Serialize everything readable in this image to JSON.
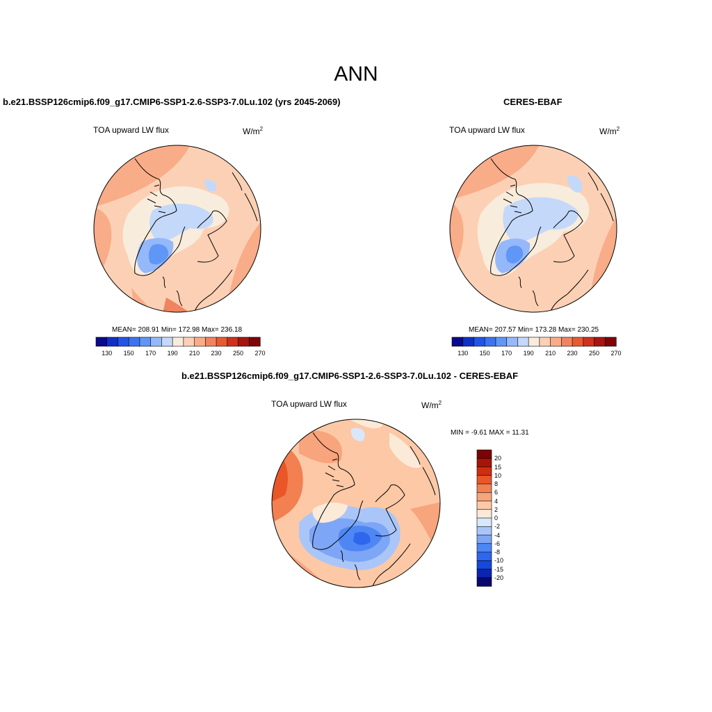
{
  "main_title": "ANN",
  "top_left": {
    "title": "b.e21.BSSP126cmip6.f09_g17.CMIP6-SSP1-2.6-SSP3-7.0Lu.102 (yrs 2045-2069)",
    "variable": "TOA upward LW flux",
    "units": "W/m",
    "units_exp": "2",
    "stats": "MEAN= 208.91  Min= 172.98  Max= 236.18"
  },
  "top_right": {
    "title": "CERES-EBAF",
    "variable": "TOA upward LW flux",
    "units": "W/m",
    "units_exp": "2",
    "stats": "MEAN= 207.57  Min= 173.28  Max= 230.25"
  },
  "bottom": {
    "title": "b.e21.BSSP126cmip6.f09_g17.CMIP6-SSP1-2.6-SSP3-7.0Lu.102 - CERES-EBAF",
    "variable": "TOA upward LW flux",
    "units": "W/m",
    "units_exp": "2",
    "minmax": "MIN =  -9.61 MAX =  11.31"
  },
  "abs_colorbar": {
    "colors": [
      "#0a0a8c",
      "#1030c8",
      "#2454e6",
      "#3c74f0",
      "#6096f6",
      "#94b8fa",
      "#c4d8fa",
      "#f8ecdc",
      "#fcd0b4",
      "#f8ac88",
      "#f08460",
      "#e85a34",
      "#d0301c",
      "#a81410",
      "#7e0606"
    ],
    "tick_labels": [
      "130",
      "150",
      "170",
      "190",
      "210",
      "230",
      "250",
      "270"
    ]
  },
  "diff_colorbar": {
    "colors": [
      "#08086e",
      "#0a26b0",
      "#1648dc",
      "#2e66ee",
      "#4e86f4",
      "#7ea6f6",
      "#aac6f8",
      "#d8e8fa",
      "#fcead8",
      "#fcc8a6",
      "#f8a47c",
      "#f28050",
      "#ea5628",
      "#d02e10",
      "#a81408",
      "#7a0404"
    ],
    "tick_labels": [
      "20",
      "15",
      "10",
      "8",
      "6",
      "4",
      "2",
      "0",
      "-2",
      "-4",
      "-6",
      "-8",
      "-10",
      "-15",
      "-20"
    ]
  }
}
